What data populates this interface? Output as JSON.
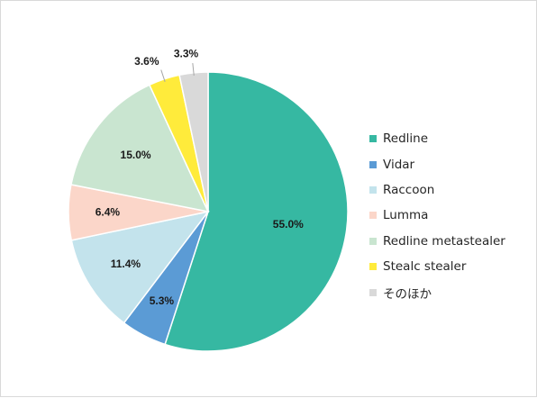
{
  "chart_data": {
    "type": "pie",
    "title": "",
    "start_angle_deg": 0,
    "direction": "clockwise",
    "legend_position": "right",
    "slices": [
      {
        "label": "Redline",
        "value": 55.0,
        "value_label": "55.0%",
        "color": "#36b8a2"
      },
      {
        "label": "Vidar",
        "value": 5.3,
        "value_label": "5.3%",
        "color": "#5b9bd5"
      },
      {
        "label": "Raccoon",
        "value": 11.4,
        "value_label": "11.4%",
        "color": "#c3e3ec"
      },
      {
        "label": "Lumma",
        "value": 6.4,
        "value_label": "6.4%",
        "color": "#fbd6c9"
      },
      {
        "label": "Redline metastealer",
        "value": 15.0,
        "value_label": "15.0%",
        "color": "#c9e5d0"
      },
      {
        "label": "Stealc stealer",
        "value": 3.6,
        "value_label": "3.6%",
        "color": "#ffeb3b"
      },
      {
        "label": "そのほか",
        "value": 3.3,
        "value_label": "3.3%",
        "color": "#d9d9d9"
      }
    ]
  }
}
